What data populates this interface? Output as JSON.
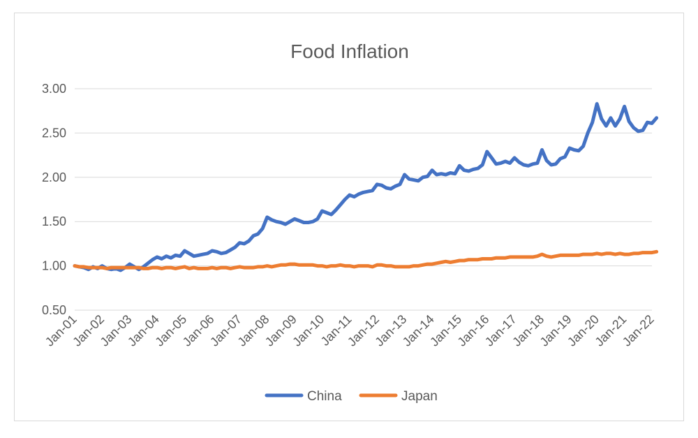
{
  "chart_data": {
    "type": "line",
    "title": "Food Inflation",
    "xlabel": "",
    "ylabel": "",
    "ylim": [
      0.5,
      3.0
    ],
    "y_ticks": [
      "0.50",
      "1.00",
      "1.50",
      "2.00",
      "2.50",
      "3.00"
    ],
    "y_tick_values": [
      0.5,
      1.0,
      1.5,
      2.0,
      2.5,
      3.0
    ],
    "x_tick_labels": [
      "Jan-01",
      "Jan-02",
      "Jan-03",
      "Jan-04",
      "Jan-05",
      "Jan-06",
      "Jan-07",
      "Jan-08",
      "Jan-09",
      "Jan-10",
      "Jan-11",
      "Jan-12",
      "Jan-13",
      "Jan-14",
      "Jan-15",
      "Jan-16",
      "Jan-17",
      "Jan-18",
      "Jan-19",
      "Jan-20",
      "Jan-21",
      "Jan-22"
    ],
    "grid": "horizontal",
    "legend_position": "bottom",
    "colors": {
      "China": "#4472c4",
      "Japan": "#ed7d31",
      "grid": "#d9d9d9",
      "text": "#595959"
    },
    "series": [
      {
        "name": "China",
        "x": [
          "2001-01",
          "2001-03",
          "2001-05",
          "2001-07",
          "2001-09",
          "2001-11",
          "2002-01",
          "2002-03",
          "2002-05",
          "2002-07",
          "2002-09",
          "2002-11",
          "2003-01",
          "2003-03",
          "2003-05",
          "2003-07",
          "2003-09",
          "2003-11",
          "2004-01",
          "2004-03",
          "2004-05",
          "2004-07",
          "2004-09",
          "2004-11",
          "2005-01",
          "2005-03",
          "2005-05",
          "2005-07",
          "2005-09",
          "2005-11",
          "2006-01",
          "2006-03",
          "2006-05",
          "2006-07",
          "2006-09",
          "2006-11",
          "2007-01",
          "2007-03",
          "2007-05",
          "2007-07",
          "2007-09",
          "2007-11",
          "2008-01",
          "2008-03",
          "2008-05",
          "2008-07",
          "2008-09",
          "2008-11",
          "2009-01",
          "2009-03",
          "2009-05",
          "2009-07",
          "2009-09",
          "2009-11",
          "2010-01",
          "2010-03",
          "2010-05",
          "2010-07",
          "2010-09",
          "2010-11",
          "2011-01",
          "2011-03",
          "2011-05",
          "2011-07",
          "2011-09",
          "2011-11",
          "2012-01",
          "2012-03",
          "2012-05",
          "2012-07",
          "2012-09",
          "2012-11",
          "2013-01",
          "2013-03",
          "2013-05",
          "2013-07",
          "2013-09",
          "2013-11",
          "2014-01",
          "2014-03",
          "2014-05",
          "2014-07",
          "2014-09",
          "2014-11",
          "2015-01",
          "2015-03",
          "2015-05",
          "2015-07",
          "2015-09",
          "2015-11",
          "2016-01",
          "2016-03",
          "2016-05",
          "2016-07",
          "2016-09",
          "2016-11",
          "2017-01",
          "2017-03",
          "2017-05",
          "2017-07",
          "2017-09",
          "2017-11",
          "2018-01",
          "2018-03",
          "2018-05",
          "2018-07",
          "2018-09",
          "2018-11",
          "2019-01",
          "2019-03",
          "2019-05",
          "2019-07",
          "2019-09",
          "2019-11",
          "2020-01",
          "2020-03",
          "2020-05",
          "2020-07",
          "2020-09",
          "2020-11",
          "2021-01",
          "2021-03",
          "2021-05",
          "2021-07",
          "2021-09",
          "2021-11",
          "2022-01",
          "2022-03"
        ],
        "values": [
          1.0,
          0.99,
          0.98,
          0.96,
          0.99,
          0.97,
          1.0,
          0.97,
          0.96,
          0.97,
          0.95,
          0.98,
          1.02,
          0.99,
          0.96,
          0.99,
          1.03,
          1.07,
          1.1,
          1.08,
          1.11,
          1.09,
          1.12,
          1.11,
          1.17,
          1.14,
          1.11,
          1.12,
          1.13,
          1.14,
          1.17,
          1.16,
          1.14,
          1.15,
          1.18,
          1.21,
          1.26,
          1.25,
          1.28,
          1.34,
          1.36,
          1.42,
          1.55,
          1.52,
          1.5,
          1.49,
          1.47,
          1.5,
          1.53,
          1.51,
          1.49,
          1.49,
          1.5,
          1.53,
          1.62,
          1.6,
          1.58,
          1.63,
          1.69,
          1.75,
          1.8,
          1.78,
          1.81,
          1.83,
          1.84,
          1.85,
          1.92,
          1.91,
          1.88,
          1.87,
          1.9,
          1.92,
          2.03,
          1.98,
          1.97,
          1.96,
          2.0,
          2.01,
          2.08,
          2.03,
          2.04,
          2.03,
          2.05,
          2.04,
          2.13,
          2.08,
          2.07,
          2.09,
          2.1,
          2.14,
          2.29,
          2.22,
          2.15,
          2.16,
          2.18,
          2.16,
          2.22,
          2.17,
          2.14,
          2.13,
          2.15,
          2.16,
          2.31,
          2.19,
          2.14,
          2.15,
          2.21,
          2.23,
          2.33,
          2.31,
          2.3,
          2.35,
          2.5,
          2.62,
          2.83,
          2.66,
          2.58,
          2.67,
          2.58,
          2.66,
          2.8,
          2.63,
          2.56,
          2.52,
          2.53,
          2.62,
          2.61,
          2.67
        ]
      },
      {
        "name": "Japan",
        "x": [
          "2001-01",
          "2001-03",
          "2001-05",
          "2001-07",
          "2001-09",
          "2001-11",
          "2002-01",
          "2002-03",
          "2002-05",
          "2002-07",
          "2002-09",
          "2002-11",
          "2003-01",
          "2003-03",
          "2003-05",
          "2003-07",
          "2003-09",
          "2003-11",
          "2004-01",
          "2004-03",
          "2004-05",
          "2004-07",
          "2004-09",
          "2004-11",
          "2005-01",
          "2005-03",
          "2005-05",
          "2005-07",
          "2005-09",
          "2005-11",
          "2006-01",
          "2006-03",
          "2006-05",
          "2006-07",
          "2006-09",
          "2006-11",
          "2007-01",
          "2007-03",
          "2007-05",
          "2007-07",
          "2007-09",
          "2007-11",
          "2008-01",
          "2008-03",
          "2008-05",
          "2008-07",
          "2008-09",
          "2008-11",
          "2009-01",
          "2009-03",
          "2009-05",
          "2009-07",
          "2009-09",
          "2009-11",
          "2010-01",
          "2010-03",
          "2010-05",
          "2010-07",
          "2010-09",
          "2010-11",
          "2011-01",
          "2011-03",
          "2011-05",
          "2011-07",
          "2011-09",
          "2011-11",
          "2012-01",
          "2012-03",
          "2012-05",
          "2012-07",
          "2012-09",
          "2012-11",
          "2013-01",
          "2013-03",
          "2013-05",
          "2013-07",
          "2013-09",
          "2013-11",
          "2014-01",
          "2014-03",
          "2014-05",
          "2014-07",
          "2014-09",
          "2014-11",
          "2015-01",
          "2015-03",
          "2015-05",
          "2015-07",
          "2015-09",
          "2015-11",
          "2016-01",
          "2016-03",
          "2016-05",
          "2016-07",
          "2016-09",
          "2016-11",
          "2017-01",
          "2017-03",
          "2017-05",
          "2017-07",
          "2017-09",
          "2017-11",
          "2018-01",
          "2018-03",
          "2018-05",
          "2018-07",
          "2018-09",
          "2018-11",
          "2019-01",
          "2019-03",
          "2019-05",
          "2019-07",
          "2019-09",
          "2019-11",
          "2020-01",
          "2020-03",
          "2020-05",
          "2020-07",
          "2020-09",
          "2020-11",
          "2021-01",
          "2021-03",
          "2021-05",
          "2021-07",
          "2021-09",
          "2021-11",
          "2022-01",
          "2022-03"
        ],
        "values": [
          1.0,
          0.99,
          0.99,
          0.98,
          0.98,
          0.98,
          0.98,
          0.97,
          0.98,
          0.98,
          0.98,
          0.98,
          0.98,
          0.98,
          0.98,
          0.97,
          0.97,
          0.98,
          0.98,
          0.97,
          0.98,
          0.98,
          0.97,
          0.98,
          0.99,
          0.97,
          0.98,
          0.97,
          0.97,
          0.97,
          0.98,
          0.97,
          0.98,
          0.98,
          0.97,
          0.98,
          0.99,
          0.98,
          0.98,
          0.98,
          0.99,
          0.99,
          1.0,
          0.99,
          1.0,
          1.01,
          1.01,
          1.02,
          1.02,
          1.01,
          1.01,
          1.01,
          1.01,
          1.0,
          1.0,
          0.99,
          1.0,
          1.0,
          1.01,
          1.0,
          1.0,
          0.99,
          1.0,
          1.0,
          1.0,
          0.99,
          1.01,
          1.01,
          1.0,
          1.0,
          0.99,
          0.99,
          0.99,
          0.99,
          1.0,
          1.0,
          1.01,
          1.02,
          1.02,
          1.03,
          1.04,
          1.05,
          1.04,
          1.05,
          1.06,
          1.06,
          1.07,
          1.07,
          1.07,
          1.08,
          1.08,
          1.08,
          1.09,
          1.09,
          1.09,
          1.1,
          1.1,
          1.1,
          1.1,
          1.1,
          1.1,
          1.11,
          1.13,
          1.11,
          1.1,
          1.11,
          1.12,
          1.12,
          1.12,
          1.12,
          1.12,
          1.13,
          1.13,
          1.13,
          1.14,
          1.13,
          1.14,
          1.14,
          1.13,
          1.14,
          1.13,
          1.13,
          1.14,
          1.14,
          1.15,
          1.15,
          1.15,
          1.16
        ]
      }
    ]
  }
}
